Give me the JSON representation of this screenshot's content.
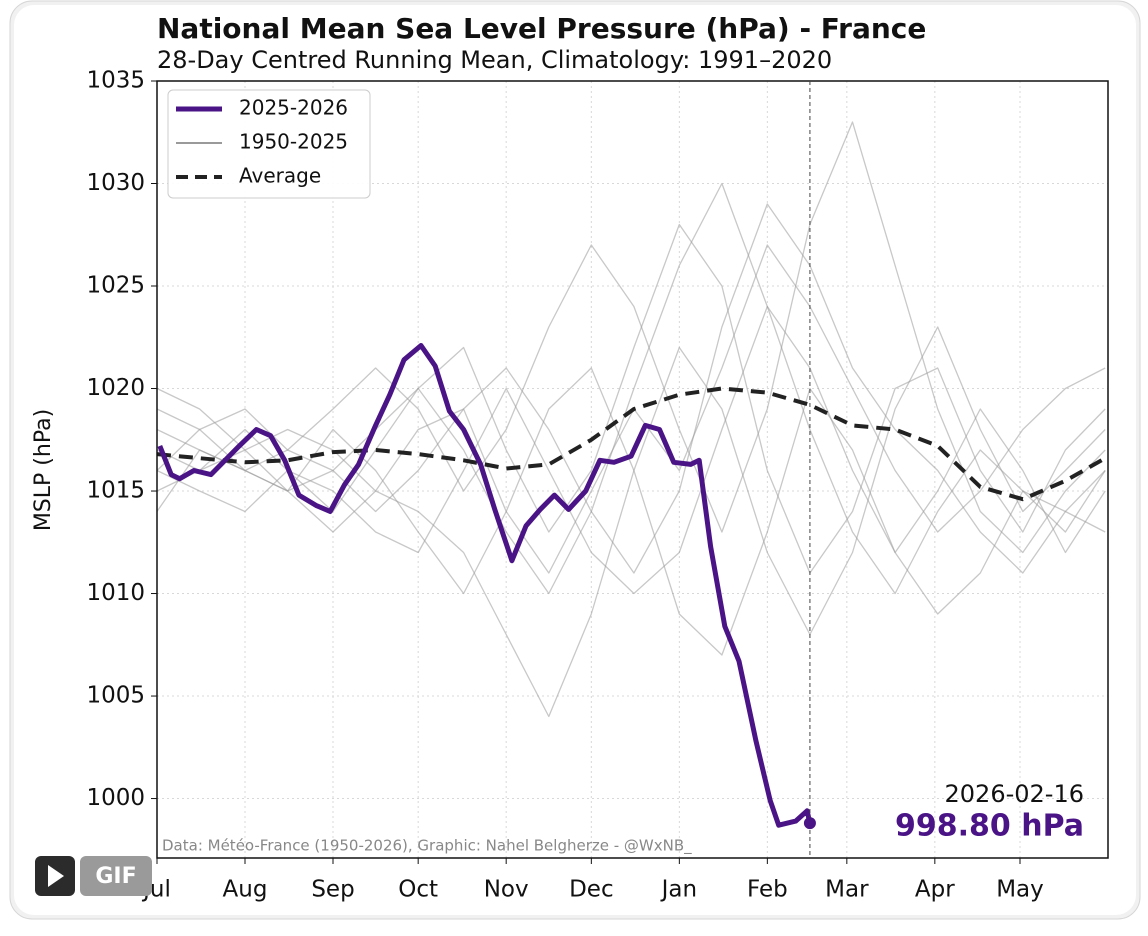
{
  "chart_data": {
    "type": "line",
    "title": "National Mean Sea Level Pressure (hPa) - France",
    "subtitle": "28-Day Centred Running Mean, Climatology: 1991–2020",
    "y_label": "MSLP (hPa)",
    "credits": "Data: Météo-France (1950-2026), Graphic: Nahel Belgherze - @WxNB_",
    "xlim": [
      0,
      335
    ],
    "ylim": [
      997.1,
      1035
    ],
    "xticks": [
      {
        "value": 0,
        "label": "Jul"
      },
      {
        "value": 31,
        "label": "Aug"
      },
      {
        "value": 62,
        "label": "Sep"
      },
      {
        "value": 92,
        "label": "Oct"
      },
      {
        "value": 123,
        "label": "Nov"
      },
      {
        "value": 153,
        "label": "Dec"
      },
      {
        "value": 184,
        "label": "Jan"
      },
      {
        "value": 215,
        "label": "Feb"
      },
      {
        "value": 243,
        "label": "Mar"
      },
      {
        "value": 274,
        "label": "Apr"
      },
      {
        "value": 304,
        "label": "May"
      }
    ],
    "yticks": [
      1000,
      1005,
      1010,
      1015,
      1020,
      1025,
      1030,
      1035
    ],
    "grid": true,
    "legend": "upper left",
    "series": [
      {
        "name": "2025-2026",
        "color": "#4a1486",
        "width": 5,
        "x": [
          1,
          5,
          8,
          13,
          19,
          24,
          29,
          35,
          40,
          45,
          50,
          56,
          61,
          66,
          71,
          77,
          82,
          87,
          93,
          98,
          103,
          108,
          114,
          119,
          125,
          130,
          135,
          140,
          145,
          151,
          156,
          161,
          167,
          172,
          177,
          182,
          188,
          191,
          195,
          200,
          205,
          211,
          216,
          219,
          225,
          229,
          230
        ],
        "values": [
          1017.2,
          1015.8,
          1015.6,
          1016.0,
          1015.8,
          1016.5,
          1017.2,
          1018.0,
          1017.7,
          1016.5,
          1014.8,
          1014.3,
          1014.0,
          1015.3,
          1016.3,
          1018.2,
          1019.7,
          1021.4,
          1022.1,
          1021.1,
          1018.9,
          1018.0,
          1016.3,
          1014.1,
          1011.6,
          1013.3,
          1014.1,
          1014.8,
          1014.1,
          1015.0,
          1016.5,
          1016.4,
          1016.7,
          1018.2,
          1018.0,
          1016.4,
          1016.3,
          1016.5,
          1012.3,
          1008.4,
          1006.7,
          1002.8,
          999.9,
          998.7,
          998.9,
          999.4,
          998.8
        ]
      },
      {
        "name": "1950-2025",
        "color": "#9a9a9a",
        "width": 1.3,
        "x": [
          0,
          15,
          31,
          46,
          62,
          77,
          92,
          108,
          123,
          138,
          153,
          168,
          184,
          199,
          215,
          230,
          245,
          260,
          275,
          290,
          305,
          320,
          334
        ],
        "lines": [
          [
            1018,
            1017,
            1016,
            1015,
            1016,
            1018,
            1020,
            1017,
            1013,
            1010,
            1014,
            1020,
            1026,
            1030,
            1024,
            1018,
            1013,
            1010,
            1014,
            1017,
            1015,
            1013,
            1016
          ],
          [
            1015,
            1016,
            1017,
            1018,
            1017,
            1015,
            1014,
            1012,
            1008,
            1004,
            1009,
            1016,
            1022,
            1019,
            1012,
            1008,
            1012,
            1019,
            1023,
            1018,
            1014,
            1016,
            1018
          ],
          [
            1019,
            1018,
            1016,
            1017,
            1019,
            1021,
            1019,
            1015,
            1018,
            1023,
            1027,
            1024,
            1018,
            1013,
            1019,
            1028,
            1033,
            1026,
            1019,
            1014,
            1012,
            1015,
            1017
          ],
          [
            1016,
            1015,
            1014,
            1016,
            1015,
            1013,
            1012,
            1016,
            1020,
            1016,
            1012,
            1010,
            1012,
            1018,
            1024,
            1021,
            1016,
            1012,
            1009,
            1011,
            1015,
            1014,
            1013
          ],
          [
            1017,
            1016,
            1018,
            1016,
            1014,
            1017,
            1020,
            1022,
            1017,
            1013,
            1016,
            1022,
            1028,
            1025,
            1016,
            1011,
            1014,
            1020,
            1021,
            1016,
            1013,
            1017,
            1019
          ],
          [
            1014,
            1017,
            1016,
            1015,
            1018,
            1016,
            1013,
            1010,
            1014,
            1019,
            1021,
            1016,
            1009,
            1007,
            1013,
            1020,
            1017,
            1012,
            1015,
            1019,
            1016,
            1012,
            1015
          ],
          [
            1020,
            1019,
            1017,
            1015,
            1013,
            1015,
            1018,
            1019,
            1014,
            1011,
            1015,
            1019,
            1016,
            1021,
            1027,
            1024,
            1020,
            1016,
            1013,
            1015,
            1018,
            1020,
            1021
          ],
          [
            1016,
            1018,
            1019,
            1017,
            1016,
            1014,
            1016,
            1019,
            1021,
            1018,
            1014,
            1011,
            1015,
            1023,
            1029,
            1026,
            1021,
            1018,
            1016,
            1013,
            1011,
            1014,
            1016
          ]
        ]
      },
      {
        "name": "Average",
        "color": "#222222",
        "width": 4,
        "dashed": true,
        "x": [
          0,
          15,
          31,
          46,
          62,
          77,
          92,
          108,
          123,
          138,
          153,
          168,
          184,
          199,
          215,
          230,
          245,
          260,
          275,
          290,
          305,
          320,
          334
        ],
        "values": [
          1016.8,
          1016.6,
          1016.4,
          1016.5,
          1016.9,
          1017.0,
          1016.8,
          1016.5,
          1016.1,
          1016.3,
          1017.5,
          1019.0,
          1019.7,
          1020.0,
          1019.8,
          1019.2,
          1018.2,
          1018.0,
          1017.2,
          1015.2,
          1014.6,
          1015.5,
          1016.6
        ]
      }
    ],
    "current": {
      "x": 230,
      "date": "2026-02-16",
      "label": "998.80 hPa"
    }
  },
  "ui": {
    "gif_label": "GIF"
  }
}
